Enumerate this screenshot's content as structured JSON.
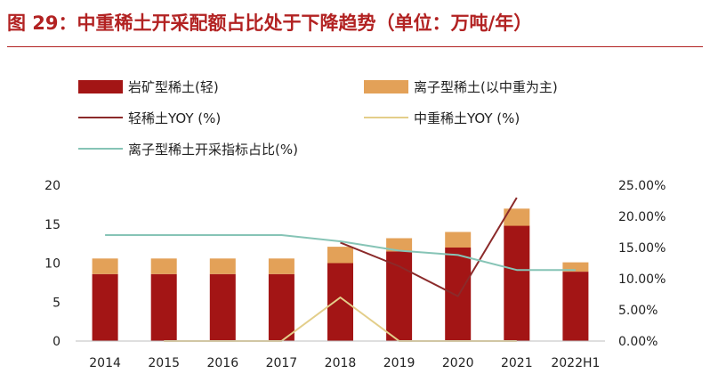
{
  "title": "图 29：中重稀土开采配额占比处于下降趋势（单位：万吨/年）",
  "chart_data": {
    "type": "bar",
    "title": "图 29：中重稀土开采配额占比处于下降趋势（单位：万吨/年）",
    "categories": [
      "2014",
      "2015",
      "2016",
      "2017",
      "2018",
      "2019",
      "2020",
      "2021",
      "2022H1"
    ],
    "stacked_bars": [
      {
        "name": "岩矿型稀土(轻)",
        "color": "#A31515",
        "values": [
          8.6,
          8.6,
          8.6,
          8.6,
          10.0,
          11.5,
          12.0,
          14.8,
          8.9
        ]
      },
      {
        "name": "离子型稀土(以中重为主)",
        "color": "#E3A158",
        "values": [
          2.0,
          2.0,
          2.0,
          2.0,
          2.1,
          1.7,
          2.0,
          2.2,
          1.2
        ]
      }
    ],
    "line_series": [
      {
        "name": "轻稀土YOY (%)",
        "color": "#8B2A2A",
        "x_start_index": 4,
        "values": [
          15.8,
          12.0,
          7.2,
          23.0
        ]
      },
      {
        "name": "中重稀土YOY (%)",
        "color": "#E3CE8A",
        "x_start_index": 1,
        "values": [
          0.0,
          0.0,
          0.0,
          7.0,
          0.0,
          0.0,
          0.0
        ]
      },
      {
        "name": "离子型稀土开采指标占比(%)",
        "color": "#86C4B6",
        "x_start_index": 0,
        "values": [
          17.0,
          17.0,
          17.0,
          17.0,
          16.0,
          14.5,
          13.8,
          11.4,
          11.4
        ]
      }
    ],
    "y_left": {
      "ticks": [
        "0",
        "5",
        "10",
        "15",
        "20"
      ],
      "ylim": [
        0,
        20
      ]
    },
    "y_right": {
      "ticks": [
        "0.00%",
        "5.00%",
        "10.00%",
        "15.00%",
        "20.00%",
        "25.00%"
      ],
      "ylim": [
        0,
        25
      ]
    },
    "legend_position": "top"
  }
}
